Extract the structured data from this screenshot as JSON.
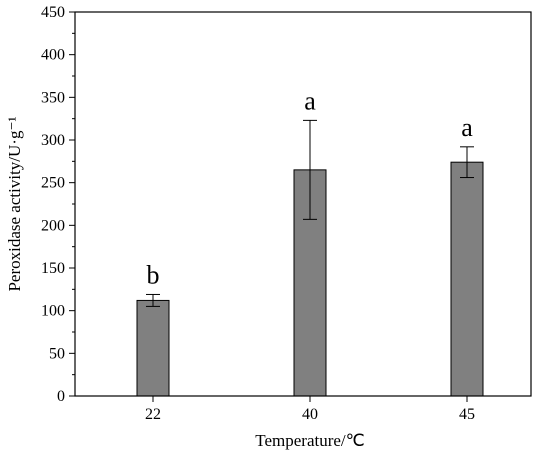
{
  "chart_data": {
    "type": "bar",
    "title": "",
    "xlabel": "Temperature/℃",
    "ylabel": "Peroxidase activity/U·g⁻¹",
    "categories": [
      "22",
      "40",
      "45"
    ],
    "values": [
      112,
      265,
      274
    ],
    "errors": [
      7,
      58,
      18
    ],
    "significance": [
      "b",
      "a",
      "a"
    ],
    "ylim": [
      0,
      450
    ],
    "yticks": [
      "0",
      "50",
      "100",
      "150",
      "200",
      "250",
      "300",
      "350",
      "400",
      "450"
    ],
    "bar_color": "#808080",
    "grid": false
  }
}
